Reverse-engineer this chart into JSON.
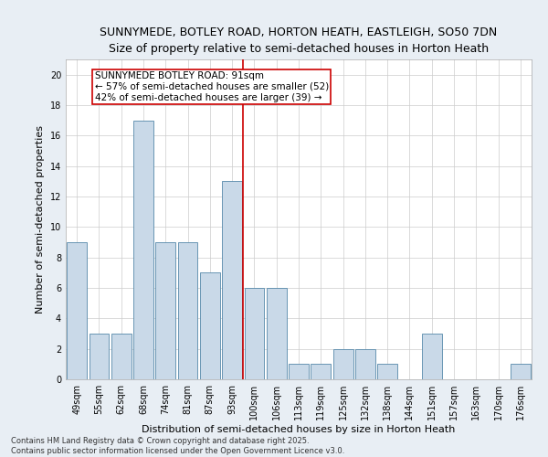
{
  "title_line1": "SUNNYMEDE, BOTLEY ROAD, HORTON HEATH, EASTLEIGH, SO50 7DN",
  "title_line2": "Size of property relative to semi-detached houses in Horton Heath",
  "xlabel": "Distribution of semi-detached houses by size in Horton Heath",
  "ylabel": "Number of semi-detached properties",
  "categories": [
    "49sqm",
    "55sqm",
    "62sqm",
    "68sqm",
    "74sqm",
    "81sqm",
    "87sqm",
    "93sqm",
    "100sqm",
    "106sqm",
    "113sqm",
    "119sqm",
    "125sqm",
    "132sqm",
    "138sqm",
    "144sqm",
    "151sqm",
    "157sqm",
    "163sqm",
    "170sqm",
    "176sqm"
  ],
  "values": [
    9,
    3,
    3,
    17,
    9,
    9,
    7,
    13,
    6,
    6,
    1,
    1,
    2,
    2,
    1,
    0,
    3,
    0,
    0,
    0,
    1
  ],
  "bar_color": "#c9d9e8",
  "bar_edge_color": "#5588aa",
  "vline_x": 7.5,
  "vline_color": "#cc0000",
  "annotation_text": "SUNNYMEDE BOTLEY ROAD: 91sqm\n← 57% of semi-detached houses are smaller (52)\n42% of semi-detached houses are larger (39) →",
  "annotation_box_color": "#cc0000",
  "ylim": [
    0,
    21
  ],
  "yticks": [
    0,
    2,
    4,
    6,
    8,
    10,
    12,
    14,
    16,
    18,
    20
  ],
  "footer_text": "Contains HM Land Registry data © Crown copyright and database right 2025.\nContains public sector information licensed under the Open Government Licence v3.0.",
  "bg_color": "#e8eef4",
  "plot_bg_color": "#ffffff",
  "grid_color": "#cccccc",
  "title_fontsize": 9,
  "subtitle_fontsize": 8.5,
  "tick_fontsize": 7,
  "ylabel_fontsize": 8,
  "xlabel_fontsize": 8,
  "annotation_fontsize": 7.5
}
